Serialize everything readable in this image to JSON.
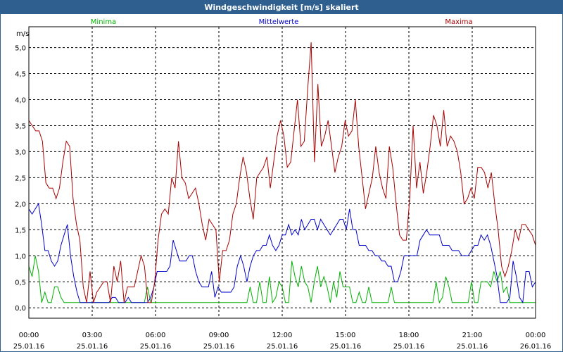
{
  "window": {
    "title": "Windgeschwindigkeit [m/s] skaliert"
  },
  "chart_data": {
    "type": "line",
    "title": "Windgeschwindigkeit [m/s] skaliert",
    "ylabel": "m/s",
    "xlabel": "",
    "ylim": [
      -0.2,
      5.4
    ],
    "xlim": [
      0,
      24
    ],
    "grid": true,
    "legend_position": "top",
    "y_ticks": [
      "0,0",
      "0,5",
      "1,0",
      "1,5",
      "2,0",
      "2,5",
      "3,0",
      "3,5",
      "4,0",
      "4,5",
      "5,0"
    ],
    "x_ticks": [
      {
        "time": "00:00",
        "date": "25.01.16"
      },
      {
        "time": "03:00",
        "date": "25.01.16"
      },
      {
        "time": "06:00",
        "date": "25.01.16"
      },
      {
        "time": "09:00",
        "date": "25.01.16"
      },
      {
        "time": "12:00",
        "date": "25.01.16"
      },
      {
        "time": "15:00",
        "date": "25.01.16"
      },
      {
        "time": "18:00",
        "date": "25.01.16"
      },
      {
        "time": "21:00",
        "date": "25.01.16"
      },
      {
        "time": "00:00",
        "date": "26.01.16"
      }
    ],
    "series": [
      {
        "name": "Minima",
        "color": "#00b000",
        "values": [
          0.8,
          0.6,
          1.0,
          0.7,
          0.1,
          0.3,
          0.1,
          0.1,
          0.4,
          0.4,
          0.2,
          0.1,
          0.1,
          0.1,
          0.1,
          0.1,
          0.1,
          0.1,
          0.1,
          0.1,
          0.1,
          0.1,
          0.1,
          0.1,
          0.1,
          0.1,
          0.1,
          0.1,
          0.1,
          0.1,
          0.1,
          0.1,
          0.1,
          0.1,
          0.1,
          0.1,
          0.1,
          0.4,
          0.1,
          0.1,
          0.1,
          0.1,
          0.1,
          0.1,
          0.1,
          0.1,
          0.1,
          0.1,
          0.1,
          0.1,
          0.1,
          0.1,
          0.1,
          0.1,
          0.1,
          0.1,
          0.1,
          0.1,
          0.1,
          0.1,
          0.1,
          0.1,
          0.1,
          0.1,
          0.1,
          0.1,
          0.1,
          0.1,
          0.1,
          0.4,
          0.1,
          0.1,
          0.5,
          0.1,
          0.1,
          0.6,
          0.1,
          0.2,
          0.5,
          0.4,
          0.1,
          0.1,
          0.9,
          0.6,
          0.4,
          0.8,
          0.5,
          0.4,
          0.1,
          0.5,
          0.8,
          0.4,
          0.6,
          0.4,
          0.1,
          0.5,
          0.2,
          0.7,
          0.4,
          0.4,
          0.4,
          0.1,
          0.1,
          0.3,
          0.1,
          0.1,
          0.4,
          0.1,
          0.1,
          0.1,
          0.1,
          0.1,
          0.1,
          0.4,
          0.1,
          0.1,
          0.1,
          0.1,
          0.1,
          0.1,
          0.1,
          0.1,
          0.1,
          0.1,
          0.1,
          0.1,
          0.1,
          0.5,
          0.1,
          0.2,
          0.6,
          0.4,
          0.1,
          0.1,
          0.1,
          0.1,
          0.1,
          0.1,
          0.5,
          0.1,
          0.1,
          0.5,
          0.5,
          0.5,
          0.4,
          0.7,
          0.5,
          0.7,
          0.3,
          0.4,
          0.1,
          0.1,
          0.1,
          0.1,
          0.1,
          0.1,
          0.1,
          0.1,
          0.1
        ]
      },
      {
        "name": "Mittelwerte",
        "color": "#0000cc",
        "values": [
          1.9,
          1.8,
          1.9,
          2.0,
          1.6,
          1.1,
          1.1,
          0.9,
          0.8,
          0.9,
          1.2,
          1.4,
          1.6,
          1.0,
          0.6,
          0.3,
          0.1,
          0.1,
          0.1,
          0.1,
          0.1,
          0.1,
          0.1,
          0.1,
          0.1,
          0.1,
          0.2,
          0.2,
          0.1,
          0.1,
          0.1,
          0.2,
          0.1,
          0.1,
          0.1,
          0.1,
          0.1,
          0.1,
          0.2,
          0.4,
          0.7,
          0.7,
          0.7,
          0.7,
          0.8,
          1.3,
          1.1,
          0.9,
          0.9,
          0.9,
          1.0,
          1.0,
          0.7,
          0.5,
          0.4,
          0.4,
          0.4,
          0.7,
          0.2,
          0.4,
          0.3,
          0.3,
          0.3,
          0.3,
          0.4,
          0.8,
          1.0,
          0.8,
          0.5,
          0.8,
          1.0,
          1.1,
          1.1,
          1.2,
          1.2,
          1.4,
          1.2,
          1.1,
          1.2,
          1.4,
          1.4,
          1.6,
          1.4,
          1.5,
          1.4,
          1.7,
          1.5,
          1.6,
          1.7,
          1.7,
          1.5,
          1.7,
          1.6,
          1.5,
          1.4,
          1.5,
          1.6,
          1.7,
          1.7,
          1.5,
          1.9,
          1.5,
          1.5,
          1.2,
          1.2,
          1.2,
          1.1,
          1.1,
          1.0,
          1.0,
          0.9,
          0.9,
          0.8,
          0.8,
          0.5,
          0.5,
          0.7,
          1.0,
          1.0,
          1.0,
          1.0,
          1.0,
          1.3,
          1.4,
          1.5,
          1.4,
          1.4,
          1.4,
          1.4,
          1.2,
          1.2,
          1.2,
          1.1,
          1.1,
          1.1,
          1.0,
          1.0,
          1.0,
          1.1,
          1.2,
          1.2,
          1.4,
          1.3,
          1.4,
          1.2,
          0.9,
          0.6,
          0.1,
          0.1,
          0.1,
          0.2,
          0.9,
          0.6,
          0.2,
          0.1,
          0.7,
          0.7,
          0.4,
          0.5
        ]
      },
      {
        "name": "Maxima",
        "color": "#aa0000",
        "values": [
          3.6,
          3.5,
          3.4,
          3.4,
          3.2,
          2.4,
          2.3,
          2.3,
          2.1,
          2.3,
          2.8,
          3.2,
          3.1,
          2.1,
          1.6,
          1.3,
          0.4,
          0.1,
          0.7,
          0.1,
          0.3,
          0.4,
          0.5,
          0.5,
          0.1,
          0.8,
          0.5,
          0.9,
          0.1,
          0.4,
          0.4,
          0.4,
          0.7,
          1.0,
          0.8,
          0.1,
          0.1,
          0.5,
          1.3,
          1.8,
          1.9,
          1.8,
          2.5,
          2.3,
          3.2,
          2.5,
          2.4,
          2.1,
          2.2,
          2.3,
          2.0,
          1.6,
          1.3,
          1.7,
          1.6,
          1.5,
          0.5,
          1.1,
          1.1,
          1.3,
          1.8,
          2.0,
          2.5,
          2.9,
          2.6,
          2.1,
          1.7,
          2.5,
          2.6,
          2.7,
          2.9,
          2.3,
          2.8,
          3.3,
          3.6,
          3.3,
          2.7,
          2.8,
          3.4,
          4.0,
          3.1,
          3.2,
          4.2,
          5.1,
          2.8,
          4.3,
          3.1,
          3.3,
          3.6,
          3.1,
          2.6,
          2.9,
          3.1,
          3.6,
          3.3,
          3.4,
          4.0,
          3.1,
          2.5,
          1.9,
          2.2,
          2.5,
          3.1,
          2.6,
          2.3,
          2.1,
          3.1,
          2.7,
          2.0,
          1.4,
          1.3,
          1.3,
          2.1,
          3.5,
          2.3,
          2.8,
          2.2,
          2.6,
          3.1,
          3.7,
          3.5,
          3.1,
          3.8,
          3.1,
          3.3,
          3.2,
          3.0,
          2.6,
          2.0,
          2.1,
          2.3,
          2.1,
          2.7,
          2.7,
          2.6,
          2.3,
          2.6,
          2.0,
          1.5,
          0.8,
          0.6,
          0.8,
          1.1,
          1.5,
          1.3,
          1.6,
          1.6,
          1.5,
          1.4,
          1.2
        ]
      }
    ]
  }
}
